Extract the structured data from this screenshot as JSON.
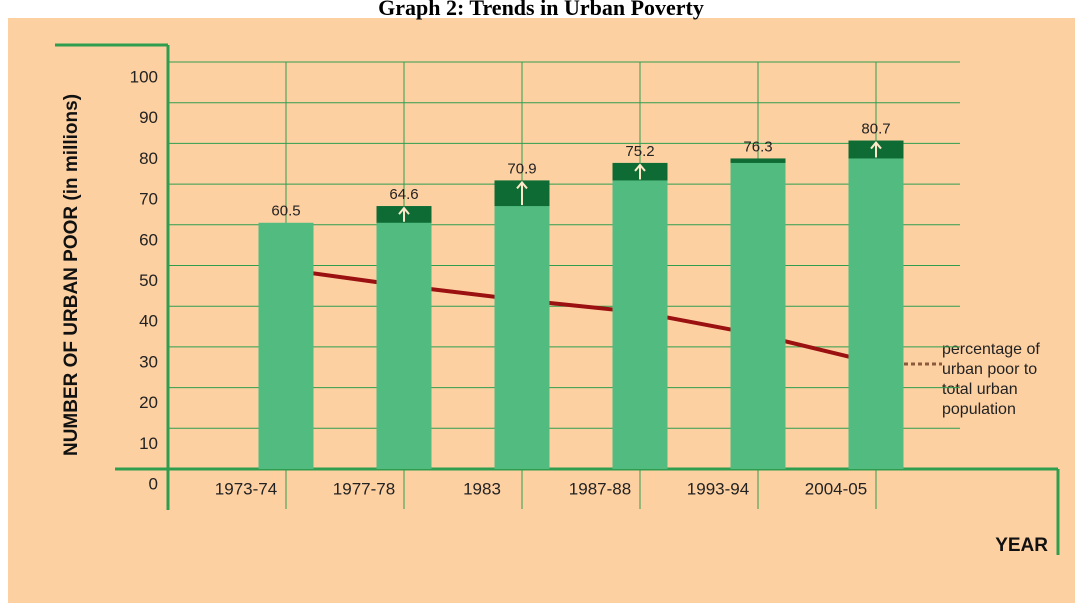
{
  "chart_data": {
    "type": "bar",
    "title": "Graph 2: Trends in Urban Poverty",
    "y_label": "NUMBER OF URBAN POOR (in millions)",
    "x_label": "YEAR",
    "categories": [
      "1973-74",
      "1977-78",
      "1983",
      "1987-88",
      "1993-94",
      "2004-05"
    ],
    "values": [
      60.5,
      64.6,
      70.9,
      75.2,
      76.3,
      80.7
    ],
    "color": "#52bc80",
    "increase_color": "#0e6b33",
    "line_series": {
      "name": "percentage of urban poor to total urban population",
      "color": "#9b1010",
      "values": [
        49,
        45,
        41.5,
        38.5,
        33,
        26
      ]
    },
    "ylim": [
      0,
      100
    ],
    "yticks": [
      0,
      10,
      20,
      30,
      40,
      50,
      60,
      70,
      80,
      90,
      100
    ],
    "grid": true
  }
}
